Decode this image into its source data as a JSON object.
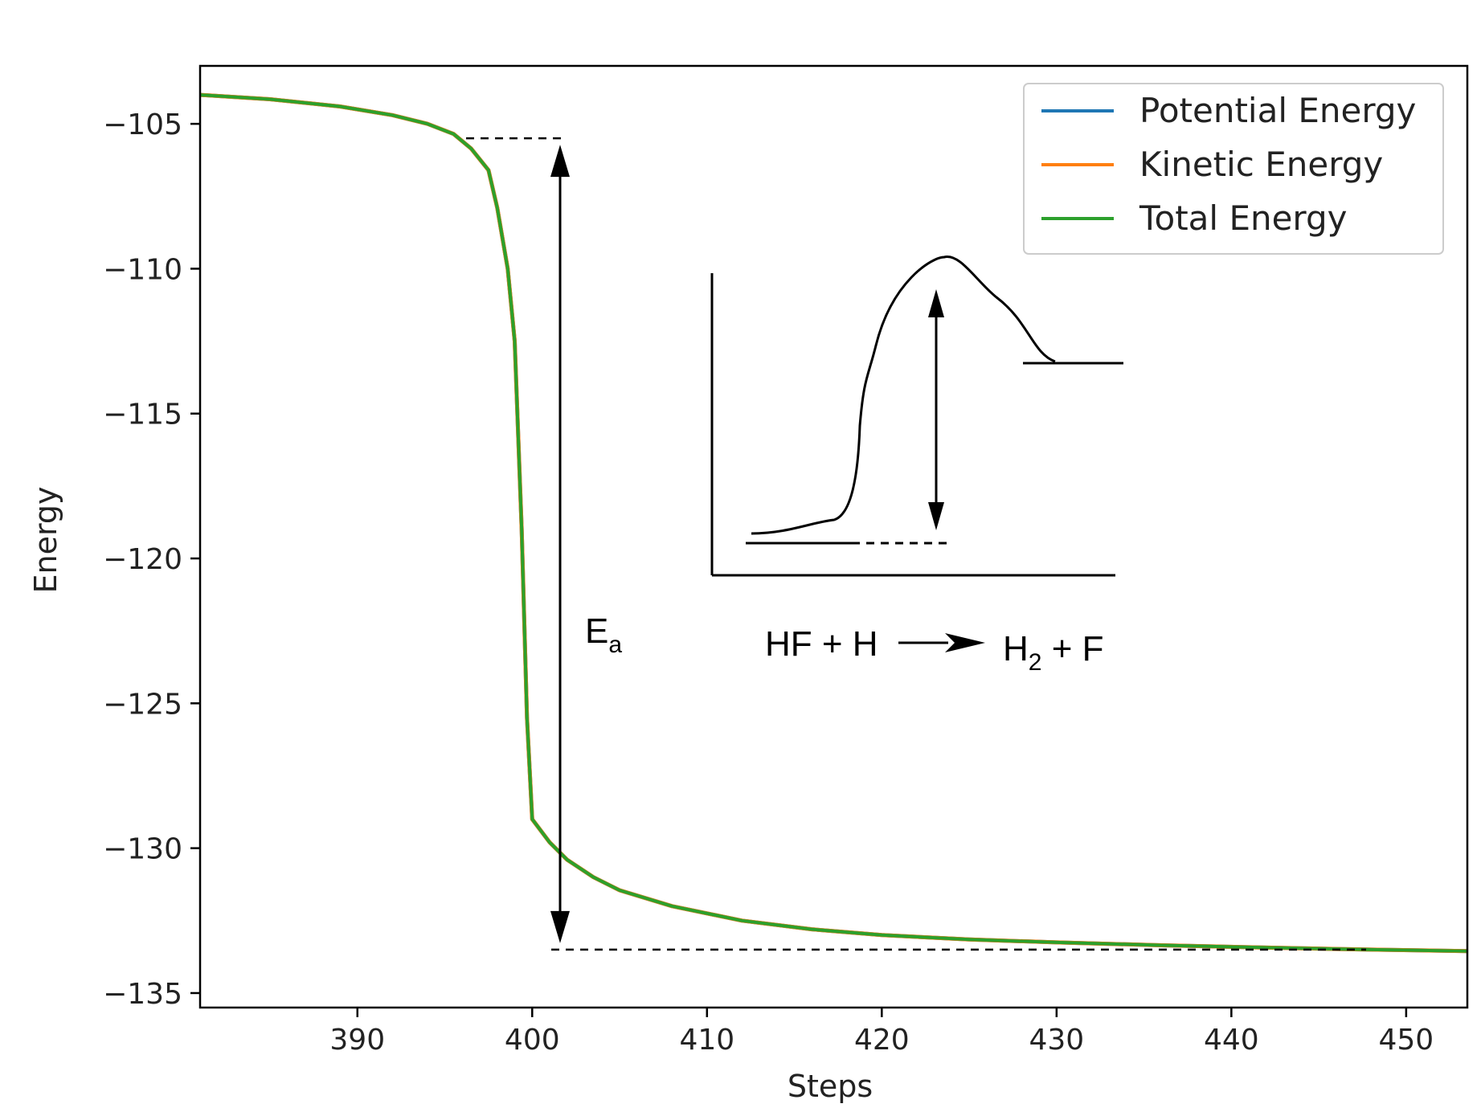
{
  "chart_data": {
    "type": "line",
    "xlabel": "Steps",
    "ylabel": "Energy",
    "xlim": [
      381,
      453.5
    ],
    "ylim": [
      -135.5,
      -103.0
    ],
    "x_ticks": [
      390,
      400,
      410,
      420,
      430,
      440,
      450
    ],
    "x_tick_labels": [
      "390",
      "400",
      "410",
      "420",
      "430",
      "440",
      "450"
    ],
    "y_ticks": [
      -105,
      -110,
      -115,
      -120,
      -125,
      -130,
      -135
    ],
    "y_tick_labels": [
      "−105",
      "−110",
      "−115",
      "−120",
      "−125",
      "−130",
      "−135"
    ],
    "legend_position": "top-right",
    "series": [
      {
        "name": "Potential Energy",
        "color": "#1f77b4",
        "x": [
          381,
          385,
          389,
          392,
          394,
          395.5,
          396.5,
          397.5,
          398,
          398.6,
          399,
          399.4,
          399.7,
          400,
          401,
          402,
          403.5,
          405,
          408,
          412,
          416,
          420,
          425,
          430,
          436,
          442,
          448,
          453.5
        ],
        "y": [
          -104.0,
          -104.15,
          -104.4,
          -104.7,
          -105.0,
          -105.35,
          -105.85,
          -106.6,
          -107.9,
          -110.0,
          -112.5,
          -119.0,
          -125.5,
          -129.0,
          -129.8,
          -130.4,
          -131.0,
          -131.45,
          -132.0,
          -132.5,
          -132.8,
          -133.0,
          -133.15,
          -133.25,
          -133.35,
          -133.43,
          -133.5,
          -133.55
        ]
      },
      {
        "name": "Kinetic Energy",
        "color": "#ff7f0e",
        "x": [
          381,
          385,
          389,
          392,
          394,
          395.5,
          396.5,
          397.5,
          398,
          398.6,
          399,
          399.4,
          399.7,
          400,
          401,
          402,
          403.5,
          405,
          408,
          412,
          416,
          420,
          425,
          430,
          436,
          442,
          448,
          453.5
        ],
        "y": [
          -104.0,
          -104.15,
          -104.4,
          -104.7,
          -105.0,
          -105.35,
          -105.85,
          -106.6,
          -107.9,
          -110.0,
          -112.5,
          -119.0,
          -125.5,
          -129.0,
          -129.8,
          -130.4,
          -131.0,
          -131.45,
          -132.0,
          -132.5,
          -132.8,
          -133.0,
          -133.15,
          -133.25,
          -133.35,
          -133.43,
          -133.5,
          -133.55
        ]
      },
      {
        "name": "Total Energy",
        "color": "#2ca02c",
        "x": [
          381,
          385,
          389,
          392,
          394,
          395.5,
          396.5,
          397.5,
          398,
          398.6,
          399,
          399.4,
          399.7,
          400,
          401,
          402,
          403.5,
          405,
          408,
          412,
          416,
          420,
          425,
          430,
          436,
          442,
          448,
          453.5
        ],
        "y": [
          -104.0,
          -104.15,
          -104.4,
          -104.7,
          -105.0,
          -105.35,
          -105.85,
          -106.6,
          -107.9,
          -110.0,
          -112.5,
          -119.0,
          -125.5,
          -129.0,
          -129.8,
          -130.4,
          -131.0,
          -131.45,
          -132.0,
          -132.5,
          -132.8,
          -133.0,
          -133.15,
          -133.25,
          -133.35,
          -133.43,
          -133.5,
          -133.55
        ]
      }
    ],
    "annotations": {
      "activation_label": "E",
      "activation_subscript": "a",
      "activation_top_y": -105.5,
      "activation_bottom_y": -133.5,
      "reaction_reactants": "HF + H",
      "reaction_product_h": "H",
      "reaction_product_sub": "2",
      "reaction_product_rest": " + F"
    }
  }
}
